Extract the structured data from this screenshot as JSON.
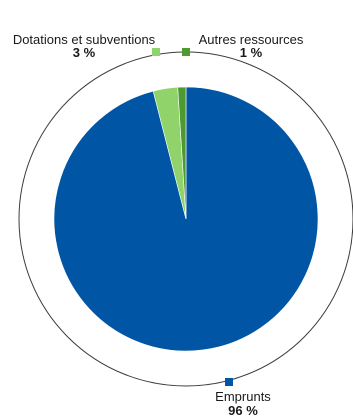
{
  "chart_data": {
    "type": "pie",
    "title": "",
    "unit": "%",
    "slices": [
      {
        "label": "Emprunts",
        "value": 96,
        "value_label": "96 %",
        "color": "#0055a5"
      },
      {
        "label": "Dotations et subventions",
        "value": 3,
        "value_label": "3 %",
        "color": "#8fd36a"
      },
      {
        "label": "Autres ressources",
        "value": 1,
        "value_label": "1 %",
        "color": "#4f9a2f"
      }
    ],
    "legend": "markers beside each label around the pie",
    "ring_color": "#3c3c3c"
  }
}
